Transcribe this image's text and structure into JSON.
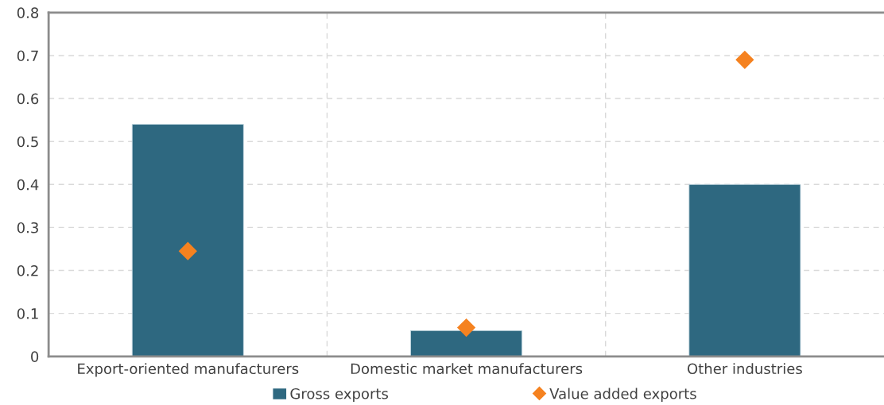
{
  "chart_data": {
    "type": "bar",
    "categories": [
      "Export-oriented manufacturers",
      "Domestic market manufacturers",
      "Other industries"
    ],
    "series": [
      {
        "name": "Gross exports",
        "color": "#2e6880",
        "values": [
          0.54,
          0.06,
          0.4
        ]
      },
      {
        "name": "Value added exports",
        "type": "scatter",
        "marker": "diamond",
        "color": "#f58220",
        "values": [
          0.245,
          0.067,
          0.69
        ]
      }
    ],
    "ylim": [
      0,
      0.8
    ],
    "yticks": [
      0,
      0.1,
      0.2,
      0.3,
      0.4,
      0.5,
      0.6,
      0.7,
      0.8
    ],
    "grid": true,
    "legend": "bottom"
  }
}
